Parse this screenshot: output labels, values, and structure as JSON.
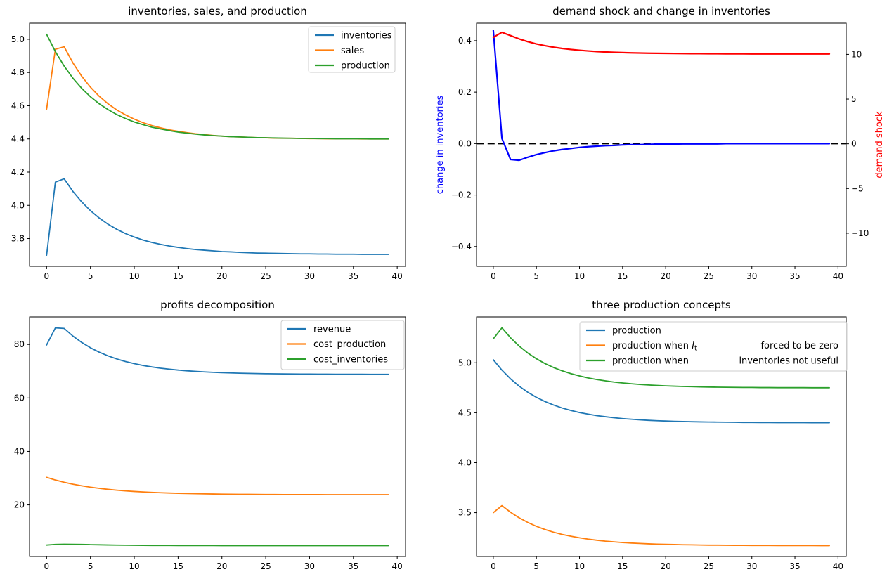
{
  "figure": {
    "background": "#ffffff"
  },
  "colors": {
    "c0": "#1f77b4",
    "c1": "#ff7f0e",
    "c2": "#2ca02c",
    "blue": "#0000ff",
    "red": "#ff0000",
    "black": "#000000"
  },
  "chart_data": [
    {
      "id": "inventories-sales-production",
      "type": "line",
      "title": "inventories, sales, and production",
      "x": [
        0,
        1,
        2,
        3,
        4,
        5,
        6,
        7,
        8,
        9,
        10,
        11,
        12,
        13,
        14,
        15,
        16,
        17,
        18,
        19,
        20,
        21,
        22,
        23,
        24,
        25,
        26,
        27,
        28,
        29,
        30,
        31,
        32,
        33,
        34,
        35,
        36,
        37,
        38,
        39
      ],
      "xlim": [
        -1.95,
        40.95
      ],
      "ylim": [
        3.633,
        5.097
      ],
      "xticks": [
        [
          0,
          "0"
        ],
        [
          5,
          "5"
        ],
        [
          10,
          "10"
        ],
        [
          15,
          "15"
        ],
        [
          20,
          "20"
        ],
        [
          25,
          "25"
        ],
        [
          30,
          "30"
        ],
        [
          35,
          "35"
        ],
        [
          40,
          "40"
        ]
      ],
      "yticks": [
        [
          3.8,
          "3.8"
        ],
        [
          4.0,
          "4.0"
        ],
        [
          4.2,
          "4.2"
        ],
        [
          4.4,
          "4.4"
        ],
        [
          4.6,
          "4.6"
        ],
        [
          4.8,
          "4.8"
        ],
        [
          5.0,
          "5.0"
        ]
      ],
      "grid": false,
      "legend_position": "upper right",
      "series": [
        {
          "name": "inventories",
          "color": "#1f77b4",
          "values": [
            3.7,
            4.14,
            4.16,
            4.084,
            4.021,
            3.968,
            3.924,
            3.887,
            3.856,
            3.83,
            3.809,
            3.791,
            3.777,
            3.765,
            3.755,
            3.747,
            3.74,
            3.734,
            3.73,
            3.726,
            3.722,
            3.72,
            3.717,
            3.715,
            3.713,
            3.712,
            3.711,
            3.71,
            3.709,
            3.708,
            3.708,
            3.707,
            3.707,
            3.706,
            3.706,
            3.706,
            3.705,
            3.705,
            3.705,
            3.705
          ]
        },
        {
          "name": "sales",
          "color": "#ff7f0e",
          "values": [
            4.58,
            4.94,
            4.955,
            4.858,
            4.778,
            4.712,
            4.657,
            4.612,
            4.575,
            4.545,
            4.519,
            4.498,
            4.481,
            4.467,
            4.455,
            4.446,
            4.438,
            4.431,
            4.426,
            4.421,
            4.417,
            4.414,
            4.412,
            4.41,
            4.408,
            4.407,
            4.405,
            4.404,
            4.404,
            4.403,
            4.402,
            4.402,
            4.401,
            4.401,
            4.401,
            4.401,
            4.4,
            4.4,
            4.4,
            4.4
          ]
        },
        {
          "name": "production",
          "color": "#2ca02c",
          "values": [
            5.03,
            4.926,
            4.839,
            4.766,
            4.705,
            4.654,
            4.612,
            4.577,
            4.547,
            4.523,
            4.502,
            4.486,
            4.471,
            4.46,
            4.45,
            4.441,
            4.435,
            4.429,
            4.424,
            4.42,
            4.417,
            4.414,
            4.412,
            4.41,
            4.408,
            4.407,
            4.406,
            4.405,
            4.404,
            4.403,
            4.403,
            4.402,
            4.402,
            4.401,
            4.401,
            4.401,
            4.401,
            4.4,
            4.4,
            4.4
          ]
        }
      ],
      "legend_entries": [
        {
          "label": "inventories",
          "color": "#1f77b4"
        },
        {
          "label": "sales",
          "color": "#ff7f0e"
        },
        {
          "label": "production",
          "color": "#2ca02c"
        }
      ]
    },
    {
      "id": "demand-shock-change-in-inventories",
      "type": "line",
      "title": "demand shock and change in inventories",
      "x": [
        0,
        1,
        2,
        3,
        4,
        5,
        6,
        7,
        8,
        9,
        10,
        11,
        12,
        13,
        14,
        15,
        16,
        17,
        18,
        19,
        20,
        21,
        22,
        23,
        24,
        25,
        26,
        27,
        28,
        29,
        30,
        31,
        32,
        33,
        34,
        35,
        36,
        37,
        38,
        39
      ],
      "xlim": [
        -1.95,
        40.95
      ],
      "ylim_left": [
        -0.477,
        0.468
      ],
      "ylim_right": [
        -13.7,
        13.49
      ],
      "xticks": [
        [
          0,
          "0"
        ],
        [
          5,
          "5"
        ],
        [
          10,
          "10"
        ],
        [
          15,
          "15"
        ],
        [
          20,
          "20"
        ],
        [
          25,
          "25"
        ],
        [
          30,
          "30"
        ],
        [
          35,
          "35"
        ],
        [
          40,
          "40"
        ]
      ],
      "yticks": [
        [
          -0.4,
          "−0.4"
        ],
        [
          -0.2,
          "−0.2"
        ],
        [
          0.0,
          "0.0"
        ],
        [
          0.2,
          "0.2"
        ],
        [
          0.4,
          "0.4"
        ]
      ],
      "yticks_right": [
        [
          -10,
          "−10"
        ],
        [
          -5,
          "−5"
        ],
        [
          0,
          "0"
        ],
        [
          5,
          "5"
        ],
        [
          10,
          "10"
        ]
      ],
      "ylabel_left": {
        "text": "change in inventories",
        "color": "#0000ff"
      },
      "ylabel_right": {
        "text": "demand shock",
        "color": "#ff0000"
      },
      "hline": {
        "value": 0,
        "color": "#000000",
        "style": "dashed"
      },
      "series": [
        {
          "name": "change in inventories",
          "color": "#0000ff",
          "axis": "left",
          "lw": 2.2,
          "values": [
            0.44,
            0.02,
            -0.062,
            -0.065,
            -0.053,
            -0.043,
            -0.035,
            -0.028,
            -0.023,
            -0.019,
            -0.015,
            -0.012,
            -0.01,
            -0.008,
            -0.007,
            -0.005,
            -0.004,
            -0.004,
            -0.003,
            -0.002,
            -0.002,
            -0.002,
            -0.001,
            -0.001,
            -0.001,
            -0.001,
            -0.001,
            0,
            0,
            0,
            0,
            0,
            0,
            0,
            0,
            0,
            0,
            0,
            0,
            0
          ]
        },
        {
          "name": "demand shock",
          "color": "#ff0000",
          "axis": "right",
          "lw": 2.2,
          "values": [
            11.9,
            12.47,
            12.1,
            11.73,
            11.42,
            11.17,
            10.97,
            10.8,
            10.66,
            10.55,
            10.46,
            10.38,
            10.32,
            10.27,
            10.23,
            10.2,
            10.17,
            10.15,
            10.13,
            10.12,
            10.11,
            10.1,
            10.09,
            10.08,
            10.08,
            10.07,
            10.07,
            10.06,
            10.06,
            10.06,
            10.05,
            10.05,
            10.05,
            10.05,
            10.05,
            10.05,
            10.05,
            10.05,
            10.05,
            10.05
          ]
        }
      ]
    },
    {
      "id": "profits-decomposition",
      "type": "line",
      "title": "profits decomposition",
      "x": [
        0,
        1,
        2,
        3,
        4,
        5,
        6,
        7,
        8,
        9,
        10,
        11,
        12,
        13,
        14,
        15,
        16,
        17,
        18,
        19,
        20,
        21,
        22,
        23,
        24,
        25,
        26,
        27,
        28,
        29,
        30,
        31,
        32,
        33,
        34,
        35,
        36,
        37,
        38,
        39
      ],
      "xlim": [
        -1.95,
        40.95
      ],
      "ylim": [
        0.71,
        90.3
      ],
      "xticks": [
        [
          0,
          "0"
        ],
        [
          5,
          "5"
        ],
        [
          10,
          "10"
        ],
        [
          15,
          "15"
        ],
        [
          20,
          "20"
        ],
        [
          25,
          "25"
        ],
        [
          30,
          "30"
        ],
        [
          35,
          "35"
        ],
        [
          40,
          "40"
        ]
      ],
      "yticks": [
        [
          20,
          "20"
        ],
        [
          40,
          "40"
        ],
        [
          60,
          "60"
        ],
        [
          80,
          "80"
        ]
      ],
      "legend_position": "upper right",
      "series": [
        {
          "name": "revenue",
          "color": "#1f77b4",
          "values": [
            79.8,
            86.2,
            86.0,
            83.14,
            80.76,
            78.77,
            77.12,
            75.73,
            74.58,
            73.62,
            72.82,
            72.15,
            71.6,
            71.13,
            70.75,
            70.42,
            70.15,
            69.93,
            69.74,
            69.58,
            69.45,
            69.35,
            69.25,
            69.18,
            69.12,
            69.06,
            69.02,
            68.98,
            68.95,
            68.93,
            68.91,
            68.89,
            68.87,
            68.86,
            68.85,
            68.84,
            68.84,
            68.83,
            68.83,
            68.82
          ]
        },
        {
          "name": "cost_production",
          "color": "#ff7f0e",
          "values": [
            30.3,
            29.3,
            28.46,
            27.74,
            27.14,
            26.62,
            26.19,
            25.82,
            25.51,
            25.25,
            25.03,
            24.84,
            24.69,
            24.55,
            24.44,
            24.34,
            24.26,
            24.19,
            24.13,
            24.08,
            24.03,
            24.0,
            23.97,
            23.94,
            23.92,
            23.9,
            23.88,
            23.87,
            23.86,
            23.85,
            23.84,
            23.84,
            23.83,
            23.83,
            23.82,
            23.82,
            23.81,
            23.81,
            23.81,
            23.81
          ]
        },
        {
          "name": "cost_inventories",
          "color": "#2ca02c",
          "values": [
            5.0,
            5.25,
            5.3,
            5.28,
            5.22,
            5.15,
            5.09,
            5.03,
            4.98,
            4.94,
            4.91,
            4.89,
            4.87,
            4.85,
            4.84,
            4.83,
            4.82,
            4.82,
            4.81,
            4.81,
            4.8,
            4.8,
            4.8,
            4.8,
            4.8,
            4.79,
            4.79,
            4.79,
            4.79,
            4.79,
            4.79,
            4.79,
            4.79,
            4.79,
            4.78,
            4.78,
            4.78,
            4.78,
            4.78,
            4.78
          ]
        }
      ],
      "legend_entries": [
        {
          "label": "revenue",
          "color": "#1f77b4"
        },
        {
          "label": "cost_production",
          "color": "#ff7f0e"
        },
        {
          "label": "cost_inventories",
          "color": "#2ca02c"
        }
      ]
    },
    {
      "id": "three-production-concepts",
      "type": "line",
      "title": "three production concepts",
      "x": [
        0,
        1,
        2,
        3,
        4,
        5,
        6,
        7,
        8,
        9,
        10,
        11,
        12,
        13,
        14,
        15,
        16,
        17,
        18,
        19,
        20,
        21,
        22,
        23,
        24,
        25,
        26,
        27,
        28,
        29,
        30,
        31,
        32,
        33,
        34,
        35,
        36,
        37,
        38,
        39
      ],
      "xlim": [
        -1.95,
        40.95
      ],
      "ylim": [
        3.061,
        5.459
      ],
      "xticks": [
        [
          0,
          "0"
        ],
        [
          5,
          "5"
        ],
        [
          10,
          "10"
        ],
        [
          15,
          "15"
        ],
        [
          20,
          "20"
        ],
        [
          25,
          "25"
        ],
        [
          30,
          "30"
        ],
        [
          35,
          "35"
        ],
        [
          40,
          "40"
        ]
      ],
      "yticks": [
        [
          3.5,
          "3.5"
        ],
        [
          4.0,
          "4.0"
        ],
        [
          4.5,
          "4.5"
        ],
        [
          5.0,
          "5.0"
        ]
      ],
      "legend_position": "upper center",
      "series": [
        {
          "name": "production",
          "color": "#1f77b4",
          "values": [
            5.03,
            4.926,
            4.839,
            4.766,
            4.705,
            4.654,
            4.612,
            4.577,
            4.547,
            4.523,
            4.502,
            4.486,
            4.471,
            4.46,
            4.45,
            4.441,
            4.435,
            4.429,
            4.424,
            4.42,
            4.417,
            4.414,
            4.412,
            4.41,
            4.408,
            4.407,
            4.406,
            4.405,
            4.404,
            4.403,
            4.403,
            4.402,
            4.402,
            4.401,
            4.401,
            4.401,
            4.401,
            4.4,
            4.4,
            4.4
          ]
        },
        {
          "name": "production when I_t forced to be zero",
          "color": "#ff7f0e",
          "values": [
            3.5,
            3.57,
            3.504,
            3.448,
            3.402,
            3.363,
            3.331,
            3.304,
            3.282,
            3.264,
            3.248,
            3.235,
            3.224,
            3.215,
            3.208,
            3.201,
            3.196,
            3.192,
            3.188,
            3.185,
            3.183,
            3.181,
            3.179,
            3.178,
            3.176,
            3.175,
            3.175,
            3.174,
            3.173,
            3.173,
            3.172,
            3.172,
            3.172,
            3.171,
            3.171,
            3.171,
            3.171,
            3.171,
            3.17,
            3.17
          ]
        },
        {
          "name": "production when inventories not useful",
          "color": "#2ca02c",
          "values": [
            5.24,
            5.35,
            5.25,
            5.167,
            5.098,
            5.04,
            4.992,
            4.952,
            4.919,
            4.891,
            4.868,
            4.848,
            4.832,
            4.819,
            4.807,
            4.798,
            4.79,
            4.783,
            4.778,
            4.773,
            4.769,
            4.766,
            4.763,
            4.761,
            4.759,
            4.757,
            4.756,
            4.755,
            4.754,
            4.753,
            4.753,
            4.752,
            4.752,
            4.751,
            4.751,
            4.751,
            4.751,
            4.75,
            4.75,
            4.75
          ]
        }
      ],
      "legend_entries": [
        {
          "label": "production",
          "color": "#1f77b4"
        },
        {
          "pre": "production when ",
          "math": {
            "base": "I",
            "sub": "t"
          },
          "post": "forced to be zero",
          "color": "#ff7f0e"
        },
        {
          "pre": "production when",
          "post": "inventories not useful",
          "color": "#2ca02c"
        }
      ]
    }
  ]
}
